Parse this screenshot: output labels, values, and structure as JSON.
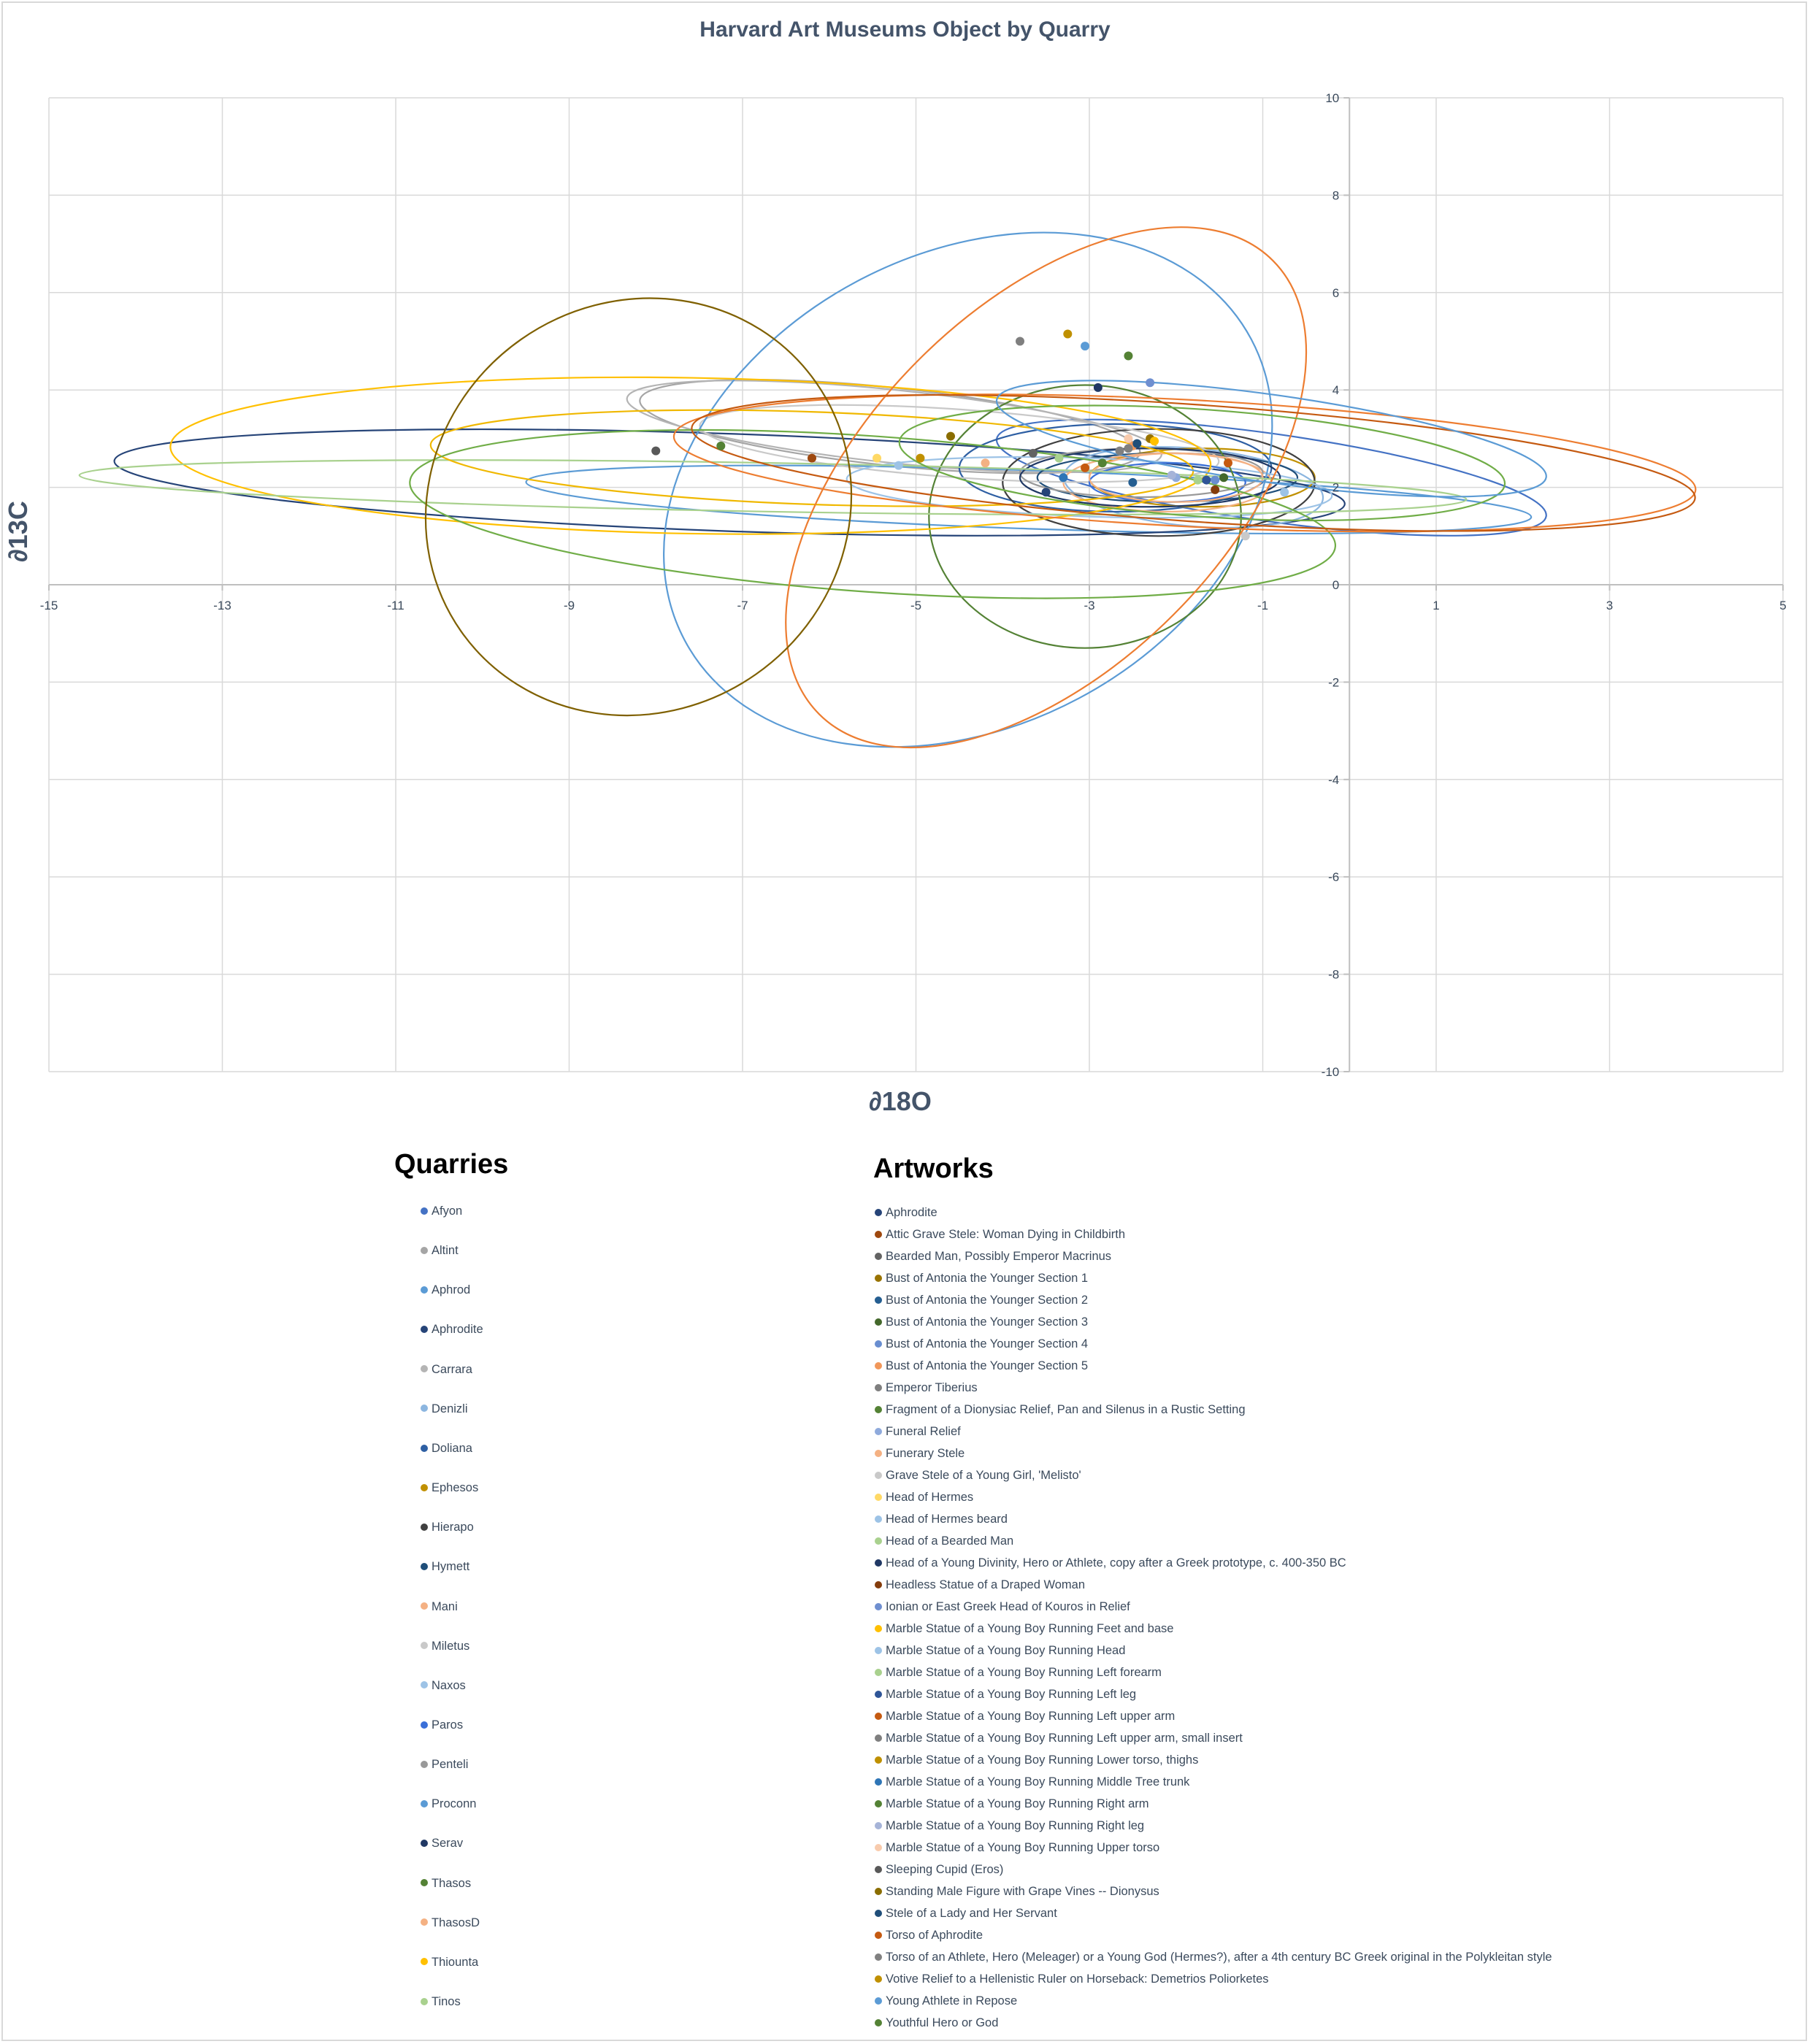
{
  "chart_data": {
    "type": "scatter",
    "title": "Harvard Art Museums Object by Quarry",
    "xlabel": "∂18O",
    "ylabel": "∂13C",
    "xlim": [
      -15,
      5
    ],
    "ylim": [
      -10,
      10
    ],
    "x_ticks": [
      "-15",
      "-13",
      "-11",
      "-9",
      "-7",
      "-5",
      "-3",
      "-1",
      "1",
      "3",
      "5"
    ],
    "y_ticks": [
      "10",
      "8",
      "6",
      "4",
      "2",
      "0",
      "-2",
      "-4",
      "-6",
      "-8",
      "-10"
    ],
    "grid": true,
    "legend_placement": "bottom",
    "quarries_heading": "Quarries",
    "artworks_heading": "Artworks",
    "quarries": [
      {
        "name": "Afyon",
        "color": "#4472c4",
        "ellipse": {
          "cx": -0.9,
          "cy": 2.2,
          "rx": 3.2,
          "ry": 0.9,
          "angle": 8
        }
      },
      {
        "name": "Altint",
        "color": "#a5a5a5",
        "ellipse": {
          "cx": -5.3,
          "cy": 3.25,
          "rx": 2.9,
          "ry": 0.8,
          "angle": 6
        }
      },
      {
        "name": "Aphrod",
        "color": "#5b9bd5",
        "ellipse": {
          "cx": -3.7,
          "cy": 1.75,
          "rx": 5.8,
          "ry": 0.6,
          "angle": 2
        }
      },
      {
        "name": "Aphrodite",
        "color": "#264478",
        "ellipse": {
          "cx": -7.15,
          "cy": 2.1,
          "rx": 7.1,
          "ry": 1.0,
          "angle": 2
        }
      },
      {
        "name": "Carrara",
        "color": "#b4b4b4",
        "ellipse": {
          "cx": -5.25,
          "cy": 3.25,
          "rx": 3.1,
          "ry": 0.75,
          "angle": 6
        }
      },
      {
        "name": "Denizli",
        "color": "#8cb6e0",
        "ellipse": {
          "cx": -1.8,
          "cy": 2.0,
          "rx": 1.5,
          "ry": 0.8,
          "angle": 5
        }
      },
      {
        "name": "Doliana",
        "color": "#2e5fa3",
        "ellipse": {
          "cx": -2.7,
          "cy": 2.4,
          "rx": 1.8,
          "ry": 0.9,
          "angle": 0
        }
      },
      {
        "name": "Ephesos",
        "color": "#c09000",
        "ellipse": {
          "cx": -1.7,
          "cy": 2.2,
          "rx": 1.3,
          "ry": 0.6,
          "angle": 0
        }
      },
      {
        "name": "Hierapo",
        "color": "#404040",
        "ellipse": {
          "cx": -2.2,
          "cy": 2.1,
          "rx": 1.8,
          "ry": 1.1,
          "angle": 0
        }
      },
      {
        "name": "Hymett",
        "color": "#1f4e79",
        "ellipse": {
          "cx": -2.1,
          "cy": 2.2,
          "rx": 1.5,
          "ry": 0.5,
          "angle": 0
        }
      },
      {
        "name": "Mani",
        "color": "#f4b183",
        "ellipse": {
          "cx": -2.1,
          "cy": 2.1,
          "rx": 1.2,
          "ry": 0.6,
          "angle": 0
        }
      },
      {
        "name": "Miletus",
        "color": "#c9c9c9",
        "ellipse": {
          "cx": -4.5,
          "cy": 2.9,
          "rx": 3.0,
          "ry": 0.7,
          "angle": 4
        }
      },
      {
        "name": "Naxos",
        "color": "#9dc3e6",
        "ellipse": {
          "cx": -3.0,
          "cy": 2.0,
          "rx": 2.8,
          "ry": 0.6,
          "angle": 2
        }
      },
      {
        "name": "Paros",
        "color": "#3a6fd8",
        "ellipse": {
          "cx": -2.1,
          "cy": 2.1,
          "rx": 0.9,
          "ry": 0.4,
          "angle": 0
        }
      },
      {
        "name": "Penteli",
        "color": "#999999",
        "ellipse": {
          "cx": -2.4,
          "cy": 2.3,
          "rx": 1.4,
          "ry": 0.5,
          "angle": 0
        }
      },
      {
        "name": "Proconn",
        "color": "#5b9bd5",
        "ellipse": {
          "cx": -4.4,
          "cy": 1.95,
          "rx": 3.7,
          "ry": 4.85,
          "angle": -28
        }
      },
      {
        "name": "Serav",
        "color": "#203864",
        "ellipse": {
          "cx": -2.3,
          "cy": 2.2,
          "rx": 1.5,
          "ry": 0.6,
          "angle": 0
        }
      },
      {
        "name": "Thasos",
        "color": "#548235",
        "ellipse": {
          "cx": -3.05,
          "cy": 1.4,
          "rx": 1.8,
          "ry": 2.7,
          "angle": 0
        }
      },
      {
        "name": "ThasosD",
        "color": "#f4b183",
        "ellipse": {
          "cx": -2.0,
          "cy": 2.2,
          "rx": 1.0,
          "ry": 0.5,
          "angle": 0
        }
      },
      {
        "name": "Thiounta",
        "color": "#ffc000",
        "ellipse": {
          "cx": -7.6,
          "cy": 2.65,
          "rx": 6.0,
          "ry": 1.6,
          "angle": 1
        }
      },
      {
        "name": "Tinos",
        "color": "#a9d18e",
        "ellipse": {
          "cx": -6.65,
          "cy": 2.0,
          "rx": 8.0,
          "ry": 0.5,
          "angle": 1
        }
      }
    ],
    "extra_ellipses": [
      {
        "color": "#f0b800",
        "cx": -6.2,
        "cy": 2.6,
        "rx": 4.4,
        "ry": 0.95,
        "angle": 2
      },
      {
        "color": "#70ad47",
        "cx": -5.5,
        "cy": 1.45,
        "rx": 5.35,
        "ry": 1.6,
        "angle": 4
      },
      {
        "color": "#ed7d31",
        "cx": -1.9,
        "cy": 2.5,
        "rx": 5.9,
        "ry": 1.3,
        "angle": 3
      },
      {
        "color": "#ed7d31",
        "cx": -3.5,
        "cy": 2.0,
        "rx": 3.7,
        "ry": 3.7,
        "angle": -45
      },
      {
        "color": "#c55a11",
        "cx": -1.8,
        "cy": 2.5,
        "rx": 5.8,
        "ry": 1.2,
        "angle": 4
      },
      {
        "color": "#70ad47",
        "cx": -1.7,
        "cy": 2.5,
        "rx": 3.5,
        "ry": 1.1,
        "angle": 4
      },
      {
        "color": "#7f6000",
        "cx": -8.2,
        "cy": 1.6,
        "rx": 2.5,
        "ry": 4.2,
        "angle": -35
      },
      {
        "color": "#5b9bd5",
        "cx": -0.9,
        "cy": 3.0,
        "rx": 3.2,
        "ry": 0.9,
        "angle": 8
      }
    ],
    "artworks": [
      {
        "name": "Aphrodite",
        "color": "#264478",
        "x": -3.5,
        "y": 1.9
      },
      {
        "name": "Attic Grave Stele: Woman Dying in Childbirth",
        "color": "#9e480e",
        "x": -6.2,
        "y": 2.6
      },
      {
        "name": "Bearded Man, Possibly Emperor Macrinus",
        "color": "#636363",
        "x": -3.65,
        "y": 2.7
      },
      {
        "name": "Bust of Antonia the Younger Section 1",
        "color": "#997300",
        "x": -2.3,
        "y": 3.0
      },
      {
        "name": "Bust of Antonia the Younger Section 2",
        "color": "#255e91",
        "x": -2.5,
        "y": 2.1
      },
      {
        "name": "Bust of Antonia the Younger Section 3",
        "color": "#43682b",
        "x": -1.45,
        "y": 2.2
      },
      {
        "name": "Bust of Antonia the Younger Section 4",
        "color": "#698ed0",
        "x": -1.55,
        "y": 2.15
      },
      {
        "name": "Bust of Antonia the Younger Section 5",
        "color": "#f1975a",
        "x": -2.5,
        "y": 2.85
      },
      {
        "name": "Emperor Tiberius",
        "color": "#7f7f7f",
        "x": -3.8,
        "y": 5.0
      },
      {
        "name": "Fragment of a Dionysiac Relief, Pan and Silenus in a Rustic Setting",
        "color": "#548235",
        "x": -7.25,
        "y": 2.85
      },
      {
        "name": "Funeral Relief",
        "color": "#8faadc",
        "x": -2.0,
        "y": 2.2
      },
      {
        "name": "Funerary Stele",
        "color": "#f4b183",
        "x": -4.2,
        "y": 2.5
      },
      {
        "name": "Grave Stele of a Young Girl, 'Melisto'",
        "color": "#c9c9c9",
        "x": -1.2,
        "y": 1.0
      },
      {
        "name": "Head of Hermes",
        "color": "#ffd966",
        "x": -5.45,
        "y": 2.6
      },
      {
        "name": "Head of Hermes beard",
        "color": "#9dc3e6",
        "x": -5.2,
        "y": 2.45
      },
      {
        "name": "Head of a Bearded Man",
        "color": "#a9d18e",
        "x": -1.75,
        "y": 2.15
      },
      {
        "name": "Head of a Young Divinity, Hero or Athlete, copy after a Greek prototype, c. 400-350 BC",
        "color": "#203864",
        "x": -2.9,
        "y": 4.05
      },
      {
        "name": "Headless Statue of a Draped Woman",
        "color": "#843c0c",
        "x": -1.55,
        "y": 1.95
      },
      {
        "name": "Ionian or East Greek Head of Kouros in Relief",
        "color": "#6f8fd0",
        "x": -2.3,
        "y": 4.15
      },
      {
        "name": "Marble Statue of a Young Boy Running Feet and base",
        "color": "#ffc000",
        "x": -2.25,
        "y": 2.95
      },
      {
        "name": "Marble Statue of a Young Boy Running Head",
        "color": "#9dc3e6",
        "x": -0.75,
        "y": 1.9
      },
      {
        "name": "Marble Statue of a Young Boy Running Left forearm",
        "color": "#a9d18e",
        "x": -3.35,
        "y": 2.6
      },
      {
        "name": "Marble Statue of a Young Boy Running Left leg",
        "color": "#2f5597",
        "x": -1.65,
        "y": 2.15
      },
      {
        "name": "Marble Statue of a Young Boy Running Left upper arm",
        "color": "#c55a11",
        "x": -3.05,
        "y": 2.4
      },
      {
        "name": "Marble Statue of a Young Boy Running Left upper arm, small insert",
        "color": "#7f7f7f",
        "x": -2.55,
        "y": 2.8
      },
      {
        "name": "Marble Statue of a Young Boy Running Lower torso, thighs",
        "color": "#bf9000",
        "x": -3.25,
        "y": 5.15
      },
      {
        "name": "Marble Statue of a Young Boy Running Middle Tree trunk",
        "color": "#2e75b6",
        "x": -3.3,
        "y": 2.2
      },
      {
        "name": "Marble Statue of a Young Boy Running Right arm",
        "color": "#548235",
        "x": -2.85,
        "y": 2.5
      },
      {
        "name": "Marble Statue of a Young Boy Running Right leg",
        "color": "#a6b4d8",
        "x": -2.05,
        "y": 2.25
      },
      {
        "name": "Marble Statue of a Young Boy Running Upper torso",
        "color": "#f8cbad",
        "x": -2.55,
        "y": 3.0
      },
      {
        "name": "Sleeping Cupid (Eros)",
        "color": "#595959",
        "x": -8.0,
        "y": 2.75
      },
      {
        "name": "Standing Male Figure with Grape Vines -- Dionysus",
        "color": "#8a6d00",
        "x": -4.6,
        "y": 3.05
      },
      {
        "name": "Stele of a Lady and Her Servant",
        "color": "#1f4e79",
        "x": -2.45,
        "y": 2.9
      },
      {
        "name": "Torso of Aphrodite",
        "color": "#c55a11",
        "x": -1.4,
        "y": 2.5
      },
      {
        "name": "Torso of an Athlete, Hero (Meleager) or a Young God (Hermes?), after a 4th century BC Greek original in the Polykleitan style",
        "color": "#808080",
        "x": -2.65,
        "y": 2.75
      },
      {
        "name": "Votive Relief to a Hellenistic Ruler on Horseback: Demetrios Poliorketes",
        "color": "#c09000",
        "x": -4.95,
        "y": 2.6
      },
      {
        "name": "Young Athlete in Repose",
        "color": "#5b9bd5",
        "x": -3.05,
        "y": 4.9
      },
      {
        "name": "Youthful Hero or God",
        "color": "#548235",
        "x": -2.55,
        "y": 4.7
      }
    ]
  }
}
